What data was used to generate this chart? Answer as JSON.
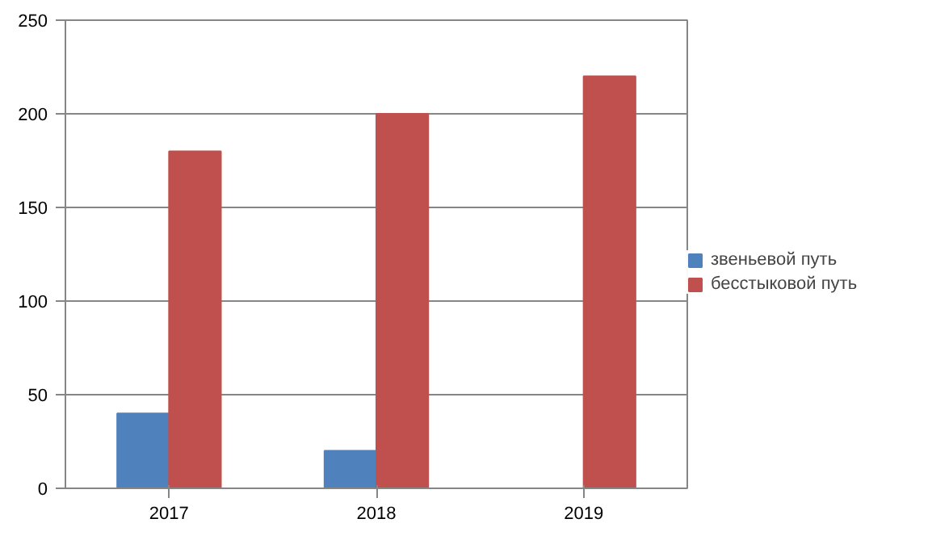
{
  "chart_data": {
    "type": "bar",
    "categories": [
      "2017",
      "2018",
      "2019"
    ],
    "series": [
      {
        "name": "звеньевой путь",
        "color": "#4f81bd",
        "values": [
          40,
          20,
          null
        ]
      },
      {
        "name": "бесстыковой путь",
        "color": "#c0504d",
        "values": [
          180,
          200,
          220
        ]
      }
    ],
    "ylim": [
      0,
      250
    ],
    "yticks": [
      0,
      50,
      100,
      150,
      200,
      250
    ],
    "grid": "y",
    "legend": "right"
  }
}
